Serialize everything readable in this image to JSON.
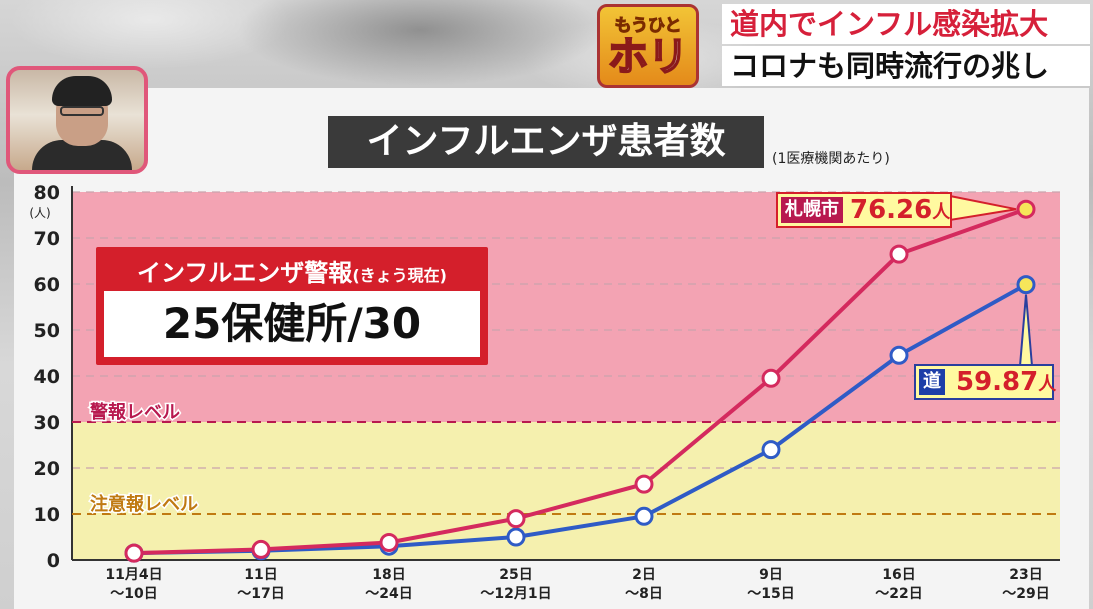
{
  "banner": {
    "logo_top": "もうひと",
    "logo_bottom": "ホリ",
    "headline1": "道内でインフル感染拡大",
    "headline2": "コロナも同時流行の兆し"
  },
  "alert": {
    "title": "インフルエンザ警報",
    "title_suffix": "(きょう現在)",
    "value": "25保健所/30"
  },
  "colors": {
    "sapporo_line": "#d42a5e",
    "hokkaido_line": "#2f5bc6",
    "alert_zone": "#f3a3b3",
    "caution_zone": "#f5f0ae",
    "alert_level_text": "#b8194f",
    "caution_level_text": "#c07a12"
  },
  "chart_data": {
    "type": "line",
    "title": "インフルエンザ患者数",
    "subtitle": "(1医療機関あたり)",
    "ylabel": "(人)",
    "ylim": [
      0,
      80
    ],
    "yticks": [
      "0",
      "10",
      "20",
      "30",
      "40",
      "50",
      "60",
      "70",
      "80"
    ],
    "x_labels": [
      [
        "11月4日",
        "〜10日"
      ],
      [
        "11日",
        "〜17日"
      ],
      [
        "18日",
        "〜24日"
      ],
      [
        "25日",
        "〜12月1日"
      ],
      [
        "2日",
        "〜8日"
      ],
      [
        "9日",
        "〜15日"
      ],
      [
        "16日",
        "〜22日"
      ],
      [
        "23日",
        "〜29日"
      ]
    ],
    "thresholds": [
      {
        "name": "警報レベル",
        "value": 30
      },
      {
        "name": "注意報レベル",
        "value": 10
      }
    ],
    "series": [
      {
        "name": "札幌市",
        "values": [
          1.5,
          2.3,
          3.8,
          9.0,
          16.5,
          39.5,
          66.5,
          76.26
        ],
        "label": "76.26",
        "unit": "人"
      },
      {
        "name": "道",
        "values": [
          1.5,
          2.0,
          3.0,
          5.0,
          9.5,
          24.0,
          44.5,
          59.87
        ],
        "label": "59.87",
        "unit": "人"
      }
    ]
  }
}
